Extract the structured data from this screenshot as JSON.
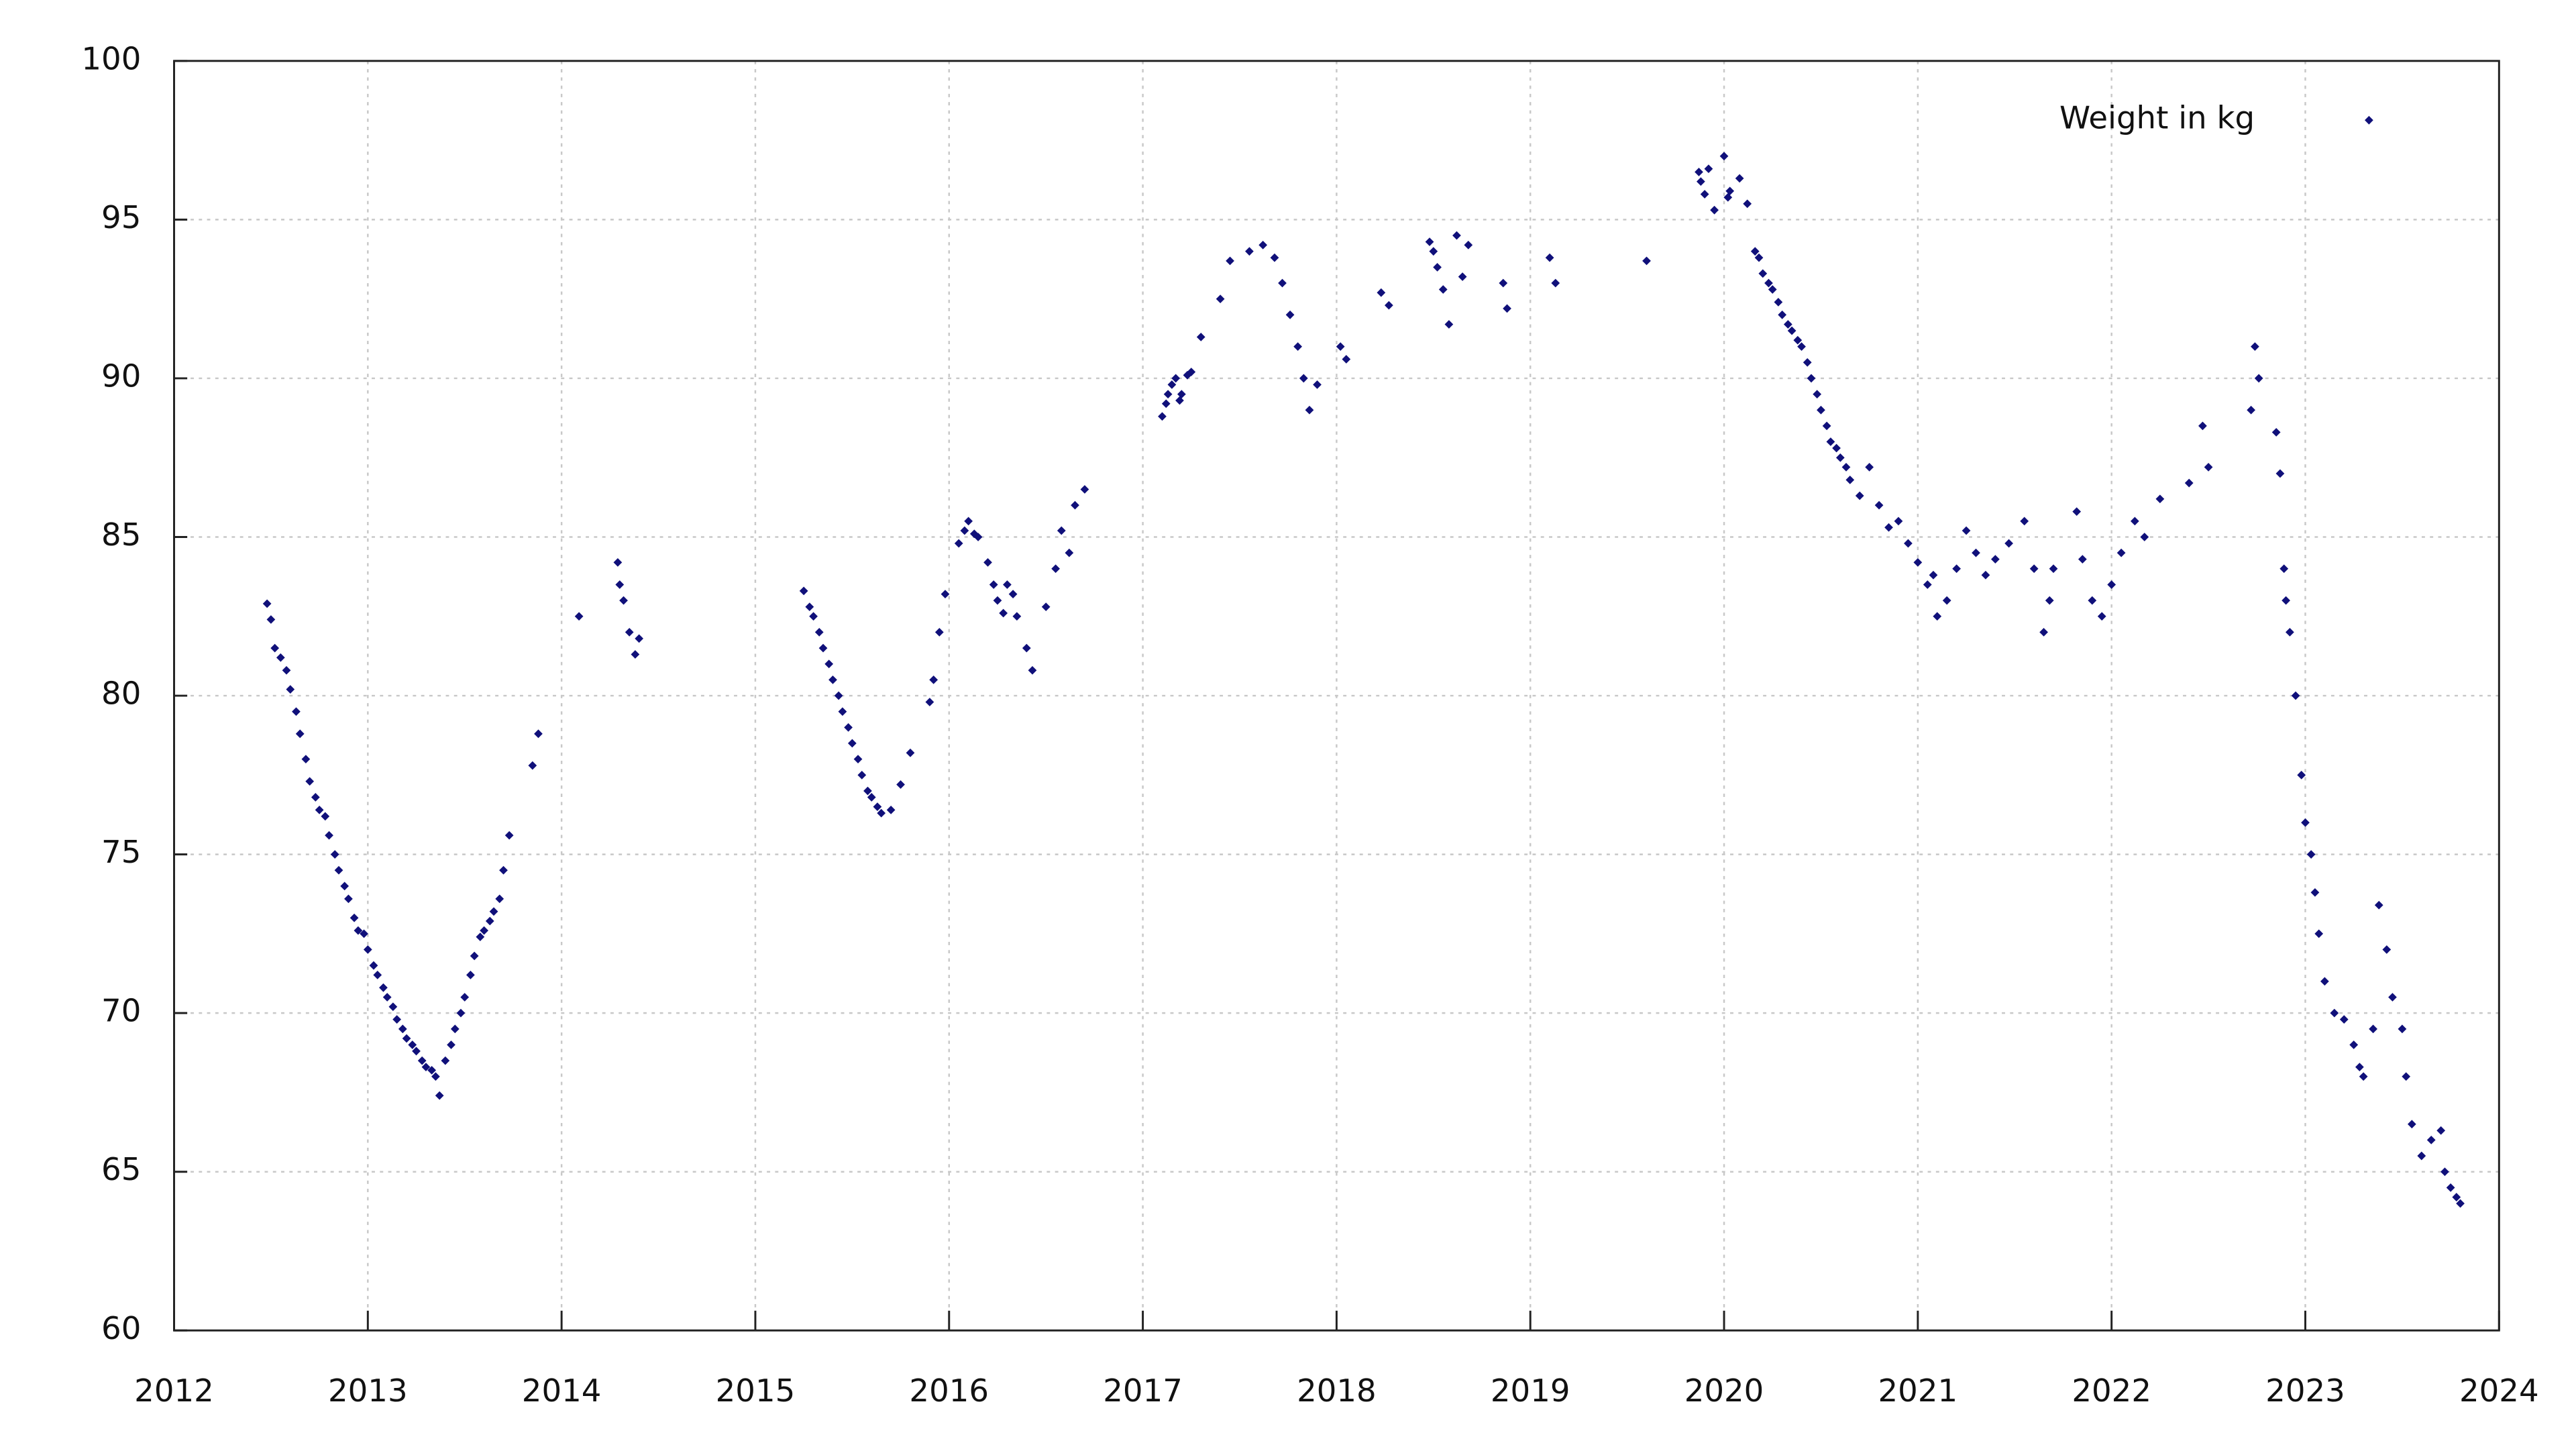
{
  "chart_data": {
    "type": "scatter",
    "color": "#10107a",
    "grid": true,
    "legend": "upper right",
    "series": [
      {
        "name": "Weight in kg",
        "color": "#10107a",
        "x": [
          2012.48,
          2012.5,
          2012.52,
          2012.55,
          2012.58,
          2012.6,
          2012.63,
          2012.65,
          2012.68,
          2012.7,
          2012.73,
          2012.75,
          2012.78,
          2012.8,
          2012.83,
          2012.85,
          2012.88,
          2012.9,
          2012.93,
          2012.95,
          2012.98,
          2013.0,
          2013.03,
          2013.05,
          2013.08,
          2013.1,
          2013.13,
          2013.15,
          2013.18,
          2013.2,
          2013.23,
          2013.25,
          2013.28,
          2013.3,
          2013.33,
          2013.35,
          2013.37,
          2013.4,
          2013.43,
          2013.45,
          2013.48,
          2013.5,
          2013.53,
          2013.55,
          2013.58,
          2013.6,
          2013.63,
          2013.65,
          2013.68,
          2013.7,
          2013.73,
          2013.85,
          2013.88,
          2014.09,
          2014.29,
          2014.3,
          2014.32,
          2014.35,
          2014.38,
          2014.4,
          2015.25,
          2015.28,
          2015.3,
          2015.33,
          2015.35,
          2015.38,
          2015.4,
          2015.43,
          2015.45,
          2015.48,
          2015.5,
          2015.53,
          2015.55,
          2015.58,
          2015.6,
          2015.63,
          2015.65,
          2015.7,
          2015.75,
          2015.8,
          2015.9,
          2015.92,
          2015.95,
          2015.98,
          2016.05,
          2016.08,
          2016.1,
          2016.13,
          2016.15,
          2016.2,
          2016.23,
          2016.25,
          2016.28,
          2016.3,
          2016.33,
          2016.35,
          2016.4,
          2016.43,
          2016.5,
          2016.55,
          2016.58,
          2016.62,
          2016.65,
          2016.7,
          2017.1,
          2017.12,
          2017.13,
          2017.15,
          2017.17,
          2017.19,
          2017.2,
          2017.23,
          2017.25,
          2017.3,
          2017.4,
          2017.45,
          2017.55,
          2017.62,
          2017.68,
          2017.72,
          2017.76,
          2017.8,
          2017.83,
          2017.86,
          2017.9,
          2018.02,
          2018.05,
          2018.23,
          2018.27,
          2018.48,
          2018.5,
          2018.52,
          2018.55,
          2018.58,
          2018.62,
          2018.65,
          2018.68,
          2018.86,
          2018.88,
          2019.1,
          2019.13,
          2019.6,
          2019.87,
          2019.88,
          2019.9,
          2019.92,
          2019.95,
          2020.0,
          2020.02,
          2020.03,
          2020.08,
          2020.12,
          2020.16,
          2020.18,
          2020.2,
          2020.23,
          2020.25,
          2020.28,
          2020.3,
          2020.33,
          2020.35,
          2020.38,
          2020.4,
          2020.43,
          2020.45,
          2020.48,
          2020.5,
          2020.53,
          2020.55,
          2020.58,
          2020.6,
          2020.63,
          2020.65,
          2020.7,
          2020.75,
          2020.8,
          2020.85,
          2020.9,
          2020.95,
          2021.0,
          2021.05,
          2021.08,
          2021.1,
          2021.15,
          2021.2,
          2021.25,
          2021.3,
          2021.35,
          2021.4,
          2021.47,
          2021.55,
          2021.6,
          2021.65,
          2021.68,
          2021.7,
          2021.82,
          2021.85,
          2021.9,
          2021.95,
          2022.0,
          2022.05,
          2022.12,
          2022.17,
          2022.25,
          2022.4,
          2022.47,
          2022.5,
          2022.72,
          2022.74,
          2022.76,
          2022.85,
          2022.87,
          2022.89,
          2022.9,
          2022.92,
          2022.95,
          2022.98,
          2023.0,
          2023.03,
          2023.05,
          2023.07,
          2023.1,
          2023.15,
          2023.2,
          2023.25,
          2023.28,
          2023.3,
          2023.35,
          2023.38,
          2023.42,
          2023.45,
          2023.5,
          2023.52,
          2023.55,
          2023.6,
          2023.65,
          2023.7,
          2023.72,
          2023.75,
          2023.78,
          2023.8
        ],
        "values": [
          82.9,
          82.4,
          81.5,
          81.2,
          80.8,
          80.2,
          79.5,
          78.8,
          78,
          77.3,
          76.8,
          76.4,
          76.2,
          75.6,
          75,
          74.5,
          74,
          73.6,
          73,
          72.6,
          72.5,
          72,
          71.5,
          71.2,
          70.8,
          70.5,
          70.2,
          69.8,
          69.5,
          69.2,
          69,
          68.8,
          68.5,
          68.3,
          68.2,
          68,
          67.4,
          68.5,
          69,
          69.5,
          70,
          70.5,
          71.2,
          71.8,
          72.4,
          72.6,
          72.9,
          73.2,
          73.6,
          74.5,
          75.6,
          77.8,
          78.8,
          82.5,
          84.2,
          83.5,
          83,
          82,
          81.3,
          81.8,
          83.3,
          82.8,
          82.5,
          82,
          81.5,
          81,
          80.5,
          80,
          79.5,
          79,
          78.5,
          78,
          77.5,
          77,
          76.8,
          76.5,
          76.3,
          76.4,
          77.2,
          78.2,
          79.8,
          80.5,
          82,
          83.2,
          84.8,
          85.2,
          85.5,
          85.1,
          85,
          84.2,
          83.5,
          83,
          82.6,
          83.5,
          83.2,
          82.5,
          81.5,
          80.8,
          82.8,
          84,
          85.2,
          84.5,
          86,
          86.5,
          88.8,
          89.2,
          89.5,
          89.8,
          90,
          89.3,
          89.5,
          90.1,
          90.2,
          91.3,
          92.5,
          93.7,
          94,
          94.2,
          93.8,
          93,
          92,
          91,
          90,
          89,
          89.8,
          91,
          90.6,
          92.7,
          92.3,
          94.3,
          94,
          93.5,
          92.8,
          91.7,
          94.5,
          93.2,
          94.2,
          93,
          92.2,
          93.8,
          93,
          93.7,
          96.5,
          96.2,
          95.8,
          96.6,
          95.3,
          97,
          95.7,
          95.9,
          96.3,
          95.5,
          94,
          93.8,
          93.3,
          93,
          92.8,
          92.4,
          92,
          91.7,
          91.5,
          91.2,
          91,
          90.5,
          90,
          89.5,
          89,
          88.5,
          88,
          87.8,
          87.5,
          87.2,
          86.8,
          86.3,
          87.2,
          86,
          85.3,
          85.5,
          84.8,
          84.2,
          83.5,
          83.8,
          82.5,
          83,
          84,
          85.2,
          84.5,
          83.8,
          84.3,
          84.8,
          85.5,
          84,
          82,
          83,
          84,
          85.8,
          84.3,
          83,
          82.5,
          83.5,
          84.5,
          85.5,
          85,
          86.2,
          86.7,
          88.5,
          87.2,
          89,
          91,
          90,
          88.3,
          87,
          84,
          83,
          82,
          80,
          77.5,
          76,
          75,
          73.8,
          72.5,
          71,
          70,
          69.8,
          69,
          68.3,
          68,
          69.5,
          73.4,
          72,
          70.5,
          69.5,
          68,
          66.5,
          65.5,
          66,
          66.3,
          65,
          64.5,
          64.2,
          64
        ]
      }
    ],
    "xlim": [
      2012,
      2024
    ],
    "xticks": [
      2012,
      2013,
      2014,
      2015,
      2016,
      2017,
      2018,
      2019,
      2020,
      2021,
      2022,
      2023,
      2024
    ],
    "ylim": [
      60,
      100
    ],
    "yticks": [
      60,
      65,
      70,
      75,
      80,
      85,
      90,
      95,
      100
    ]
  }
}
